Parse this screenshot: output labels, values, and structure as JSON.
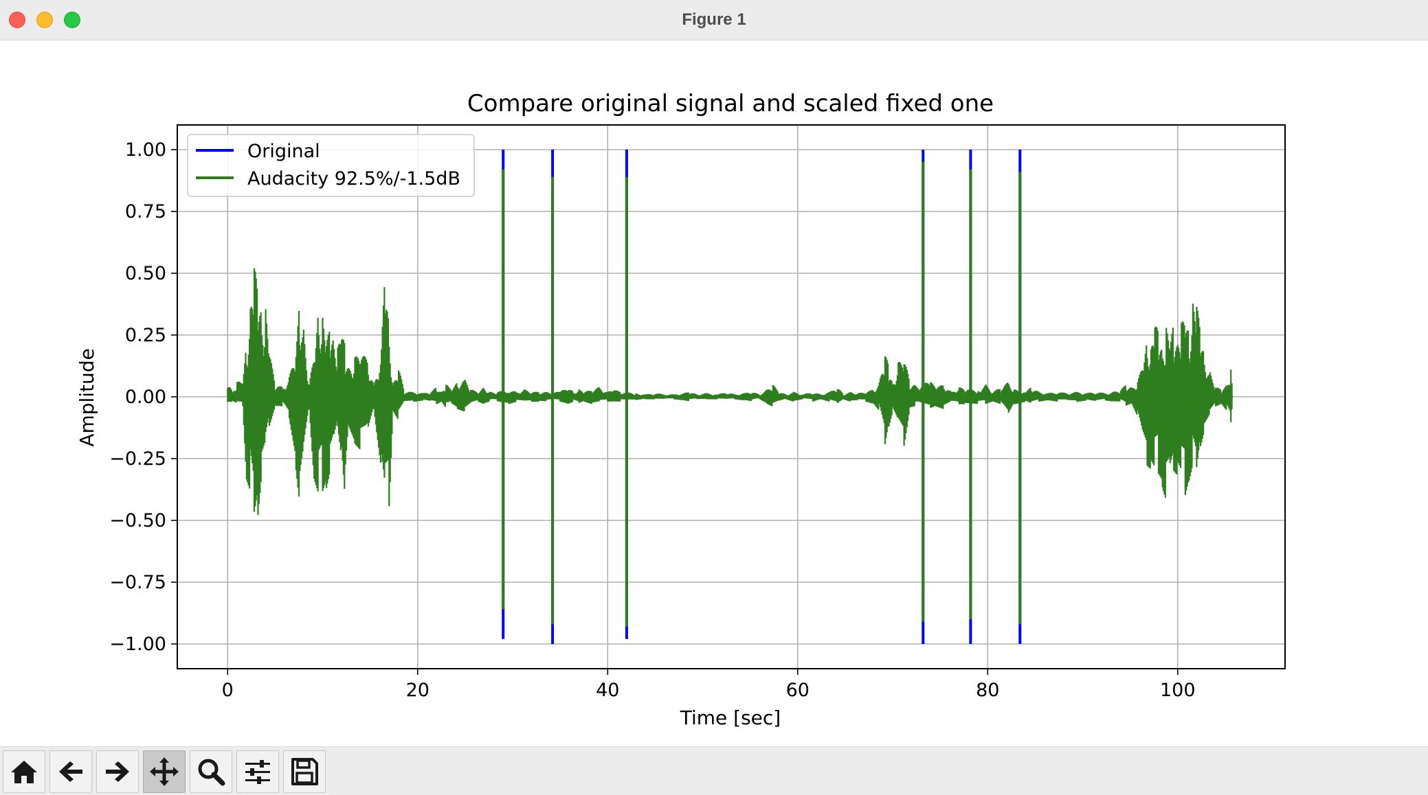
{
  "window": {
    "title": "Figure 1"
  },
  "toolbar": {
    "buttons": [
      {
        "name": "home-button",
        "icon": "home-icon"
      },
      {
        "name": "back-button",
        "icon": "arrow-left-icon"
      },
      {
        "name": "forward-button",
        "icon": "arrow-right-icon"
      },
      {
        "name": "pan-button",
        "icon": "move-icon",
        "active": true
      },
      {
        "name": "zoom-button",
        "icon": "magnifier-icon"
      },
      {
        "name": "configure-subplots-button",
        "icon": "sliders-icon"
      },
      {
        "name": "save-button",
        "icon": "floppy-disk-icon"
      }
    ]
  },
  "chart_data": {
    "type": "line",
    "title": "Compare original signal and scaled fixed one",
    "xlabel": "Time [sec]",
    "ylabel": "Amplitude",
    "xlim": [
      -5.3,
      111.3
    ],
    "ylim": [
      -1.1,
      1.1
    ],
    "xticks": [
      0,
      20,
      40,
      60,
      80,
      100
    ],
    "xtick_labels": [
      "0",
      "20",
      "40",
      "60",
      "80",
      "100"
    ],
    "yticks": [
      1.0,
      0.75,
      0.5,
      0.25,
      0.0,
      -0.25,
      -0.5,
      -0.75,
      -1.0
    ],
    "ytick_labels": [
      "1.00",
      "0.75",
      "0.50",
      "0.25",
      "0.00",
      "−0.25",
      "−0.50",
      "−0.75",
      "−1.00"
    ],
    "grid": true,
    "legend_position": "upper-left",
    "series": [
      {
        "name": "Original",
        "color": "#0000ff",
        "clicks": [
          {
            "t": 29.0,
            "max": 1.0,
            "min": -0.98
          },
          {
            "t": 34.2,
            "max": 1.0,
            "min": -1.0
          },
          {
            "t": 42.0,
            "max": 1.0,
            "min": -0.98
          },
          {
            "t": 73.2,
            "max": 1.0,
            "min": -1.0
          },
          {
            "t": 78.2,
            "max": 1.0,
            "min": -1.0
          },
          {
            "t": 83.4,
            "max": 1.0,
            "min": -1.0
          }
        ]
      },
      {
        "name": "Audacity 92.5%/-1.5dB",
        "color": "#2e7d1e",
        "clicks": [
          {
            "t": 29.0,
            "max": 0.92,
            "min": -0.86
          },
          {
            "t": 34.2,
            "max": 0.89,
            "min": -0.92
          },
          {
            "t": 42.0,
            "max": 0.89,
            "min": -0.93
          },
          {
            "t": 73.2,
            "max": 0.95,
            "min": -0.91
          },
          {
            "t": 78.2,
            "max": 0.92,
            "min": -0.9
          },
          {
            "t": 83.4,
            "max": 0.91,
            "min": -0.92
          }
        ],
        "envelope": [
          [
            0,
            0.08,
            -0.02
          ],
          [
            0.5,
            0.02,
            -0.02
          ],
          [
            1,
            0.06,
            -0.03
          ],
          [
            1.6,
            0.07,
            -0.04
          ],
          [
            2.0,
            0.22,
            -0.36
          ],
          [
            2.4,
            0.38,
            -0.4
          ],
          [
            2.8,
            0.54,
            -0.56
          ],
          [
            3.2,
            0.42,
            -0.48
          ],
          [
            3.6,
            0.35,
            -0.3
          ],
          [
            4.0,
            0.36,
            -0.22
          ],
          [
            4.4,
            0.18,
            -0.12
          ],
          [
            5.0,
            0.05,
            -0.04
          ],
          [
            5.8,
            0.04,
            -0.04
          ],
          [
            6.5,
            0.08,
            -0.1
          ],
          [
            7.2,
            0.2,
            -0.3
          ],
          [
            7.6,
            0.4,
            -0.44
          ],
          [
            8.0,
            0.3,
            -0.26
          ],
          [
            8.6,
            0.05,
            -0.05
          ],
          [
            9.2,
            0.2,
            -0.4
          ],
          [
            9.6,
            0.38,
            -0.44
          ],
          [
            10.0,
            0.33,
            -0.42
          ],
          [
            10.4,
            0.22,
            -0.38
          ],
          [
            10.8,
            0.28,
            -0.3
          ],
          [
            11.2,
            0.25,
            -0.2
          ],
          [
            11.6,
            0.2,
            -0.12
          ],
          [
            12.0,
            0.27,
            -0.25
          ],
          [
            12.4,
            0.2,
            -0.5
          ],
          [
            12.8,
            0.13,
            -0.13
          ],
          [
            13.4,
            0.16,
            -0.2
          ],
          [
            14.0,
            0.18,
            -0.22
          ],
          [
            14.8,
            0.15,
            -0.15
          ],
          [
            15.4,
            0.05,
            -0.05
          ],
          [
            16.2,
            0.2,
            -0.3
          ],
          [
            16.6,
            0.54,
            -0.44
          ],
          [
            17.0,
            0.28,
            -0.46
          ],
          [
            17.4,
            0.05,
            -0.06
          ],
          [
            18.0,
            0.12,
            -0.1
          ],
          [
            18.6,
            0.02,
            -0.02
          ],
          [
            19.6,
            0.02,
            -0.02
          ],
          [
            20.6,
            0.015,
            -0.015
          ],
          [
            21.4,
            0.02,
            -0.02
          ],
          [
            22.0,
            0.04,
            -0.03
          ],
          [
            22.5,
            0.02,
            -0.02
          ],
          [
            23.0,
            0.05,
            -0.05
          ],
          [
            23.6,
            0.03,
            -0.03
          ],
          [
            24.2,
            0.06,
            -0.05
          ],
          [
            25.0,
            0.07,
            -0.06
          ],
          [
            25.6,
            0.03,
            -0.03
          ],
          [
            26.4,
            0.02,
            -0.02
          ],
          [
            27.0,
            0.04,
            -0.03
          ],
          [
            27.6,
            0.02,
            -0.02
          ],
          [
            28.4,
            0.02,
            -0.02
          ],
          [
            29.6,
            0.03,
            -0.03
          ],
          [
            30.4,
            0.02,
            -0.02
          ],
          [
            31.2,
            0.03,
            -0.02
          ],
          [
            32.0,
            0.02,
            -0.02
          ],
          [
            32.8,
            0.02,
            -0.02
          ],
          [
            33.6,
            0.02,
            -0.02
          ],
          [
            35.0,
            0.02,
            -0.02
          ],
          [
            35.8,
            0.04,
            -0.03
          ],
          [
            36.4,
            0.02,
            -0.02
          ],
          [
            37.0,
            0.03,
            -0.03
          ],
          [
            37.6,
            0.02,
            -0.02
          ],
          [
            38.4,
            0.03,
            -0.03
          ],
          [
            39.2,
            0.04,
            -0.02
          ],
          [
            40.0,
            0.02,
            -0.02
          ],
          [
            40.6,
            0.03,
            -0.02
          ],
          [
            41.4,
            0.02,
            -0.02
          ],
          [
            43.0,
            0.015,
            -0.015
          ],
          [
            44.0,
            0.01,
            -0.01
          ],
          [
            45.0,
            0.015,
            -0.01
          ],
          [
            46.0,
            0.01,
            -0.01
          ],
          [
            47.0,
            0.01,
            -0.01
          ],
          [
            48.0,
            0.015,
            -0.015
          ],
          [
            48.6,
            0.02,
            -0.02
          ],
          [
            49.4,
            0.01,
            -0.01
          ],
          [
            50.4,
            0.015,
            -0.01
          ],
          [
            51.6,
            0.01,
            -0.01
          ],
          [
            52.6,
            0.02,
            -0.01
          ],
          [
            53.4,
            0.01,
            -0.01
          ],
          [
            54.4,
            0.015,
            -0.015
          ],
          [
            55.2,
            0.02,
            -0.02
          ],
          [
            56.0,
            0.01,
            -0.01
          ],
          [
            56.8,
            0.03,
            -0.03
          ],
          [
            57.4,
            0.05,
            -0.04
          ],
          [
            58.0,
            0.02,
            -0.02
          ],
          [
            58.8,
            0.01,
            -0.01
          ],
          [
            59.6,
            0.02,
            -0.02
          ],
          [
            60.6,
            0.01,
            -0.01
          ],
          [
            61.6,
            0.02,
            -0.02
          ],
          [
            62.4,
            0.01,
            -0.01
          ],
          [
            63.4,
            0.02,
            -0.02
          ],
          [
            64.2,
            0.04,
            -0.03
          ],
          [
            64.8,
            0.01,
            -0.01
          ],
          [
            65.6,
            0.02,
            -0.02
          ],
          [
            66.4,
            0.015,
            -0.015
          ],
          [
            67.2,
            0.02,
            -0.02
          ],
          [
            68.0,
            0.03,
            -0.03
          ],
          [
            68.6,
            0.06,
            -0.06
          ],
          [
            69.2,
            0.18,
            -0.22
          ],
          [
            69.6,
            0.12,
            -0.12
          ],
          [
            70.0,
            0.06,
            -0.06
          ],
          [
            70.6,
            0.14,
            -0.12
          ],
          [
            71.2,
            0.16,
            -0.2
          ],
          [
            71.8,
            0.06,
            -0.05
          ],
          [
            72.4,
            0.05,
            -0.04
          ],
          [
            74.0,
            0.06,
            -0.05
          ],
          [
            74.6,
            0.04,
            -0.04
          ],
          [
            75.4,
            0.05,
            -0.05
          ],
          [
            76.2,
            0.02,
            -0.02
          ],
          [
            77.0,
            0.04,
            -0.03
          ],
          [
            77.6,
            0.03,
            -0.03
          ],
          [
            79.0,
            0.03,
            -0.03
          ],
          [
            79.8,
            0.05,
            -0.03
          ],
          [
            80.6,
            0.02,
            -0.02
          ],
          [
            81.4,
            0.04,
            -0.03
          ],
          [
            82.2,
            0.06,
            -0.08
          ],
          [
            82.8,
            0.03,
            -0.03
          ],
          [
            84.0,
            0.02,
            -0.02
          ],
          [
            84.6,
            0.04,
            -0.03
          ],
          [
            85.4,
            0.02,
            -0.02
          ],
          [
            86.4,
            0.015,
            -0.015
          ],
          [
            87.4,
            0.02,
            -0.02
          ],
          [
            88.4,
            0.015,
            -0.015
          ],
          [
            89.4,
            0.02,
            -0.02
          ],
          [
            90.4,
            0.015,
            -0.015
          ],
          [
            91.4,
            0.02,
            -0.02
          ],
          [
            92.4,
            0.015,
            -0.015
          ],
          [
            93.2,
            0.02,
            -0.02
          ],
          [
            94.0,
            0.03,
            -0.02
          ],
          [
            94.6,
            0.05,
            -0.04
          ],
          [
            95.2,
            0.04,
            -0.03
          ],
          [
            95.8,
            0.06,
            -0.08
          ],
          [
            96.4,
            0.15,
            -0.2
          ],
          [
            96.8,
            0.24,
            -0.28
          ],
          [
            97.2,
            0.2,
            -0.3
          ],
          [
            97.6,
            0.3,
            -0.32
          ],
          [
            98.0,
            0.26,
            -0.34
          ],
          [
            98.4,
            0.2,
            -0.38
          ],
          [
            98.8,
            0.28,
            -0.43
          ],
          [
            99.2,
            0.22,
            -0.35
          ],
          [
            99.6,
            0.3,
            -0.3
          ],
          [
            100.0,
            0.24,
            -0.32
          ],
          [
            100.4,
            0.3,
            -0.35
          ],
          [
            100.8,
            0.32,
            -0.42
          ],
          [
            101.2,
            0.26,
            -0.36
          ],
          [
            101.6,
            0.4,
            -0.28
          ],
          [
            102.0,
            0.38,
            -0.35
          ],
          [
            102.4,
            0.26,
            -0.2
          ],
          [
            102.8,
            0.18,
            -0.14
          ],
          [
            103.4,
            0.1,
            -0.08
          ],
          [
            104.0,
            0.04,
            -0.04
          ],
          [
            104.6,
            0.03,
            -0.03
          ],
          [
            105.2,
            0.05,
            -0.06
          ],
          [
            105.6,
            0.11,
            -0.12
          ],
          [
            105.8,
            0.0,
            0.0
          ]
        ]
      }
    ]
  }
}
